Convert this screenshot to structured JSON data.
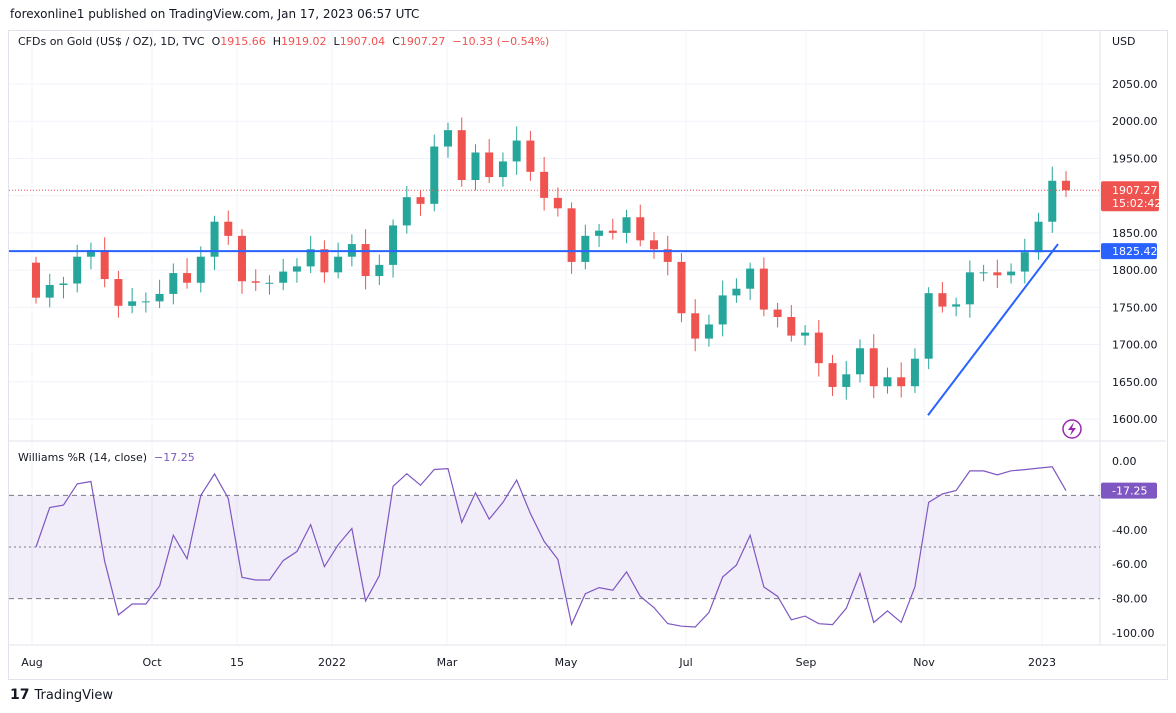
{
  "published": "forexonline1 published on TradingView.com, Jan 17, 2023 06:57 UTC",
  "legend": {
    "symbol": "CFDs on Gold (US$ / OZ), 1D, TVC",
    "o_label": "O",
    "o": "1915.66",
    "h_label": "H",
    "h": "1919.02",
    "l_label": "L",
    "l": "1907.04",
    "c_label": "C",
    "c": "1907.27",
    "change": "−10.33 (−0.54%)"
  },
  "currency": "USD",
  "last_price_label": {
    "price": "1907.27",
    "countdown": "15:02:42",
    "color": "#ef5350"
  },
  "hline_label": {
    "price": "1825.42",
    "color": "#2962ff"
  },
  "indicator": {
    "name": "Williams %R (14, close)",
    "value": "−17.25",
    "value_label": "-17.25",
    "color": "#7e57c2",
    "ticks": [
      "0.00",
      "-40.00",
      "-60.00",
      "-80.00",
      "-100.00"
    ],
    "levels": [
      -20,
      -50,
      -80
    ]
  },
  "footer": {
    "brand": "TradingView"
  },
  "colors": {
    "up": "#26a69a",
    "down": "#ef5350",
    "hline": "#2962ff",
    "trendline": "#2962ff"
  },
  "chart_data": {
    "type": "candlestick",
    "interval_shown": "1D (approximated weekly)",
    "y_ticks": [
      1600,
      1650,
      1700,
      1750,
      1800,
      1850,
      1900,
      1950,
      2000,
      2050
    ],
    "ylim": [
      1580,
      2080
    ],
    "x_ticks": [
      "Aug",
      "Oct",
      "15",
      "2022",
      "Mar",
      "May",
      "Jul",
      "Sep",
      "Nov",
      "2023"
    ],
    "closes": [
      1763,
      1780,
      1782,
      1818,
      1827,
      1788,
      1752,
      1758,
      1758,
      1768,
      1796,
      1783,
      1818,
      1865,
      1846,
      1785,
      1783,
      1783,
      1798,
      1805,
      1828,
      1797,
      1818,
      1835,
      1792,
      1807,
      1860,
      1898,
      1889,
      1966,
      1988,
      1921,
      1958,
      1925,
      1946,
      1974,
      1932,
      1897,
      1883,
      1811,
      1846,
      1853,
      1850,
      1871,
      1840,
      1828,
      1811,
      1742,
      1708,
      1727,
      1766,
      1775,
      1802,
      1747,
      1737,
      1712,
      1716,
      1675,
      1643,
      1660,
      1695,
      1644,
      1656,
      1644,
      1681,
      1769,
      1751,
      1754,
      1797,
      1797,
      1793,
      1798,
      1824,
      1865,
      1920,
      1907.27
    ],
    "horizontal_line": 1825.42,
    "trend_line": [
      {
        "date": "Nov 2022",
        "price": 1605
      },
      {
        "date": "Jan 2023",
        "price": 1835
      }
    ]
  }
}
